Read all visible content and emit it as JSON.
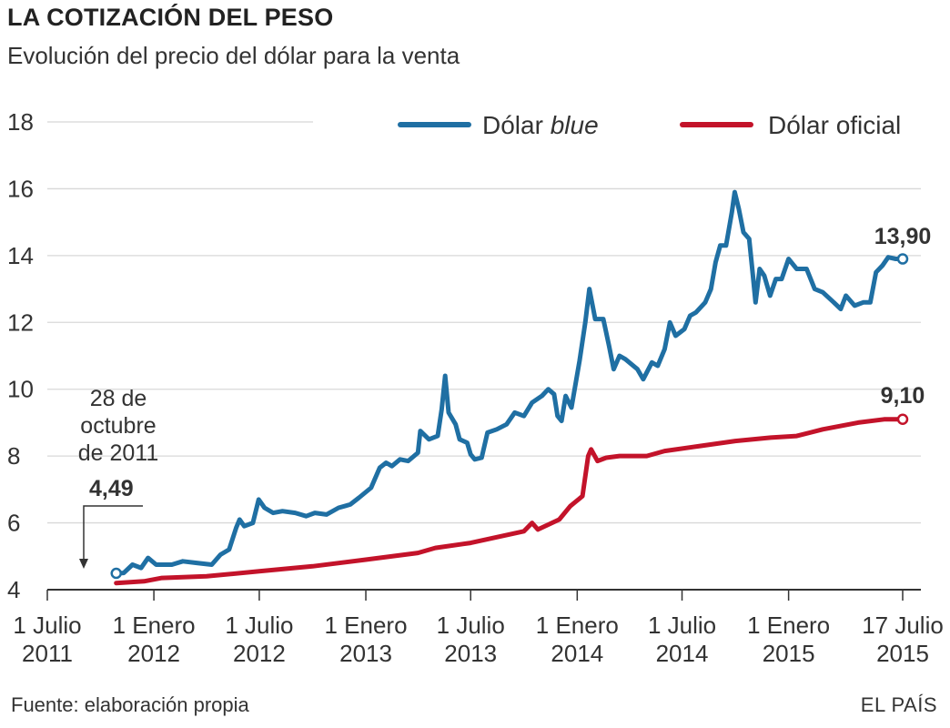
{
  "header": {
    "title": "LA COTIZACIÓN DEL PESO",
    "subtitle": "Evolución del precio del dólar para la venta"
  },
  "footer": {
    "source": "Fuente: elaboración propia",
    "brand": "EL PAÍS"
  },
  "colors": {
    "blue": "#1f6fa3",
    "red": "#c3132a",
    "grid": "#d8d8d8",
    "axis": "#333333"
  },
  "chart_data": {
    "type": "line",
    "ylim": [
      4,
      18
    ],
    "yticks": [
      "18",
      "16",
      "14",
      "12",
      "10",
      "8",
      "6",
      "4"
    ],
    "xlim": [
      "2011-07-01",
      "2015-07-17"
    ],
    "xticks": [
      {
        "date": "2011-07-01",
        "line1": "1 Julio",
        "line2": "2011"
      },
      {
        "date": "2012-01-01",
        "line1": "1 Enero",
        "line2": "2012"
      },
      {
        "date": "2012-07-01",
        "line1": "1 Julio",
        "line2": "2012"
      },
      {
        "date": "2013-01-01",
        "line1": "1 Enero",
        "line2": "2013"
      },
      {
        "date": "2013-07-01",
        "line1": "1 Julio",
        "line2": "2013"
      },
      {
        "date": "2014-01-01",
        "line1": "1 Enero",
        "line2": "2014"
      },
      {
        "date": "2014-07-01",
        "line1": "1 Julio",
        "line2": "2014"
      },
      {
        "date": "2015-01-01",
        "line1": "1 Enero",
        "line2": "2015"
      },
      {
        "date": "2015-07-17",
        "line1": "17 Julio",
        "line2": "2015"
      }
    ],
    "legend": {
      "position": "top-right",
      "blue_prefix": "Dólar ",
      "blue_emphasis": "blue",
      "red_label": "Dólar oficial"
    },
    "annotations": {
      "start_line1": "28 de",
      "start_line2": "octubre",
      "start_line3": "de 2011",
      "start_value": "4,49",
      "end_blue": "13,90",
      "end_red": "9,10"
    },
    "series": [
      {
        "name": "Dólar blue",
        "color": "#1f6fa3",
        "points": [
          [
            "2011-10-28",
            4.49
          ],
          [
            "2011-11-10",
            4.5
          ],
          [
            "2011-11-25",
            4.75
          ],
          [
            "2011-12-10",
            4.65
          ],
          [
            "2011-12-22",
            4.95
          ],
          [
            "2012-01-05",
            4.75
          ],
          [
            "2012-02-01",
            4.75
          ],
          [
            "2012-02-20",
            4.85
          ],
          [
            "2012-03-15",
            4.8
          ],
          [
            "2012-04-10",
            4.75
          ],
          [
            "2012-04-25",
            5.05
          ],
          [
            "2012-05-10",
            5.2
          ],
          [
            "2012-05-22",
            5.85
          ],
          [
            "2012-05-28",
            6.1
          ],
          [
            "2012-06-05",
            5.9
          ],
          [
            "2012-06-20",
            6.0
          ],
          [
            "2012-06-30",
            6.7
          ],
          [
            "2012-07-10",
            6.45
          ],
          [
            "2012-07-25",
            6.3
          ],
          [
            "2012-08-10",
            6.35
          ],
          [
            "2012-09-01",
            6.3
          ],
          [
            "2012-09-20",
            6.2
          ],
          [
            "2012-10-05",
            6.3
          ],
          [
            "2012-10-25",
            6.25
          ],
          [
            "2012-11-15",
            6.45
          ],
          [
            "2012-12-05",
            6.55
          ],
          [
            "2012-12-20",
            6.75
          ],
          [
            "2013-01-10",
            7.05
          ],
          [
            "2013-01-25",
            7.65
          ],
          [
            "2013-02-05",
            7.8
          ],
          [
            "2013-02-15",
            7.7
          ],
          [
            "2013-03-01",
            7.9
          ],
          [
            "2013-03-15",
            7.85
          ],
          [
            "2013-04-01",
            8.1
          ],
          [
            "2013-04-05",
            8.75
          ],
          [
            "2013-04-20",
            8.5
          ],
          [
            "2013-05-05",
            8.6
          ],
          [
            "2013-05-12",
            9.4
          ],
          [
            "2013-05-18",
            10.4
          ],
          [
            "2013-05-24",
            9.3
          ],
          [
            "2013-06-05",
            8.95
          ],
          [
            "2013-06-12",
            8.5
          ],
          [
            "2013-06-25",
            8.4
          ],
          [
            "2013-07-01",
            8.05
          ],
          [
            "2013-07-08",
            7.9
          ],
          [
            "2013-07-20",
            7.95
          ],
          [
            "2013-07-30",
            8.7
          ],
          [
            "2013-08-15",
            8.8
          ],
          [
            "2013-09-01",
            8.95
          ],
          [
            "2013-09-15",
            9.3
          ],
          [
            "2013-10-01",
            9.2
          ],
          [
            "2013-10-15",
            9.6
          ],
          [
            "2013-11-01",
            9.8
          ],
          [
            "2013-11-12",
            10.0
          ],
          [
            "2013-11-22",
            9.85
          ],
          [
            "2013-11-28",
            9.2
          ],
          [
            "2013-12-05",
            9.05
          ],
          [
            "2013-12-12",
            9.8
          ],
          [
            "2013-12-22",
            9.45
          ],
          [
            "2014-01-05",
            10.85
          ],
          [
            "2014-01-15",
            12.0
          ],
          [
            "2014-01-22",
            13.0
          ],
          [
            "2014-02-01",
            12.1
          ],
          [
            "2014-02-15",
            12.1
          ],
          [
            "2014-02-25",
            11.3
          ],
          [
            "2014-03-05",
            10.6
          ],
          [
            "2014-03-15",
            11.0
          ],
          [
            "2014-03-25",
            10.9
          ],
          [
            "2014-04-15",
            10.6
          ],
          [
            "2014-04-25",
            10.3
          ],
          [
            "2014-05-10",
            10.8
          ],
          [
            "2014-05-20",
            10.7
          ],
          [
            "2014-06-01",
            11.2
          ],
          [
            "2014-06-10",
            12.0
          ],
          [
            "2014-06-20",
            11.6
          ],
          [
            "2014-07-05",
            11.8
          ],
          [
            "2014-07-15",
            12.2
          ],
          [
            "2014-07-25",
            12.3
          ],
          [
            "2014-08-10",
            12.6
          ],
          [
            "2014-08-20",
            13.0
          ],
          [
            "2014-08-28",
            13.8
          ],
          [
            "2014-09-05",
            14.3
          ],
          [
            "2014-09-15",
            14.3
          ],
          [
            "2014-09-25",
            15.3
          ],
          [
            "2014-09-30",
            15.9
          ],
          [
            "2014-10-07",
            15.4
          ],
          [
            "2014-10-15",
            14.7
          ],
          [
            "2014-10-25",
            14.5
          ],
          [
            "2014-11-01",
            13.3
          ],
          [
            "2014-11-05",
            12.6
          ],
          [
            "2014-11-12",
            13.6
          ],
          [
            "2014-11-20",
            13.4
          ],
          [
            "2014-11-30",
            12.8
          ],
          [
            "2014-12-10",
            13.3
          ],
          [
            "2014-12-20",
            13.3
          ],
          [
            "2015-01-01",
            13.9
          ],
          [
            "2015-01-15",
            13.6
          ],
          [
            "2015-02-01",
            13.6
          ],
          [
            "2015-02-15",
            13.0
          ],
          [
            "2015-03-01",
            12.9
          ],
          [
            "2015-03-20",
            12.6
          ],
          [
            "2015-04-01",
            12.4
          ],
          [
            "2015-04-10",
            12.8
          ],
          [
            "2015-04-25",
            12.5
          ],
          [
            "2015-05-10",
            12.6
          ],
          [
            "2015-05-22",
            12.6
          ],
          [
            "2015-06-01",
            13.5
          ],
          [
            "2015-06-12",
            13.7
          ],
          [
            "2015-06-22",
            13.95
          ],
          [
            "2015-07-05",
            13.9
          ],
          [
            "2015-07-17",
            13.9
          ]
        ]
      },
      {
        "name": "Dólar oficial",
        "color": "#c3132a",
        "points": [
          [
            "2011-10-28",
            4.2
          ],
          [
            "2011-12-15",
            4.25
          ],
          [
            "2012-01-15",
            4.35
          ],
          [
            "2012-04-01",
            4.4
          ],
          [
            "2012-07-01",
            4.55
          ],
          [
            "2012-10-01",
            4.7
          ],
          [
            "2013-01-01",
            4.9
          ],
          [
            "2013-04-01",
            5.1
          ],
          [
            "2013-05-01",
            5.25
          ],
          [
            "2013-07-01",
            5.4
          ],
          [
            "2013-10-01",
            5.75
          ],
          [
            "2013-10-15",
            6.0
          ],
          [
            "2013-10-25",
            5.8
          ],
          [
            "2013-12-01",
            6.1
          ],
          [
            "2013-12-20",
            6.5
          ],
          [
            "2014-01-10",
            6.8
          ],
          [
            "2014-01-20",
            8.0
          ],
          [
            "2014-01-25",
            8.2
          ],
          [
            "2014-02-05",
            7.85
          ],
          [
            "2014-02-20",
            7.95
          ],
          [
            "2014-03-15",
            8.0
          ],
          [
            "2014-05-01",
            8.0
          ],
          [
            "2014-06-01",
            8.15
          ],
          [
            "2014-08-01",
            8.3
          ],
          [
            "2014-10-01",
            8.45
          ],
          [
            "2014-12-01",
            8.55
          ],
          [
            "2015-01-15",
            8.6
          ],
          [
            "2015-03-01",
            8.8
          ],
          [
            "2015-05-01",
            9.0
          ],
          [
            "2015-06-15",
            9.1
          ],
          [
            "2015-07-17",
            9.1
          ]
        ]
      }
    ]
  }
}
